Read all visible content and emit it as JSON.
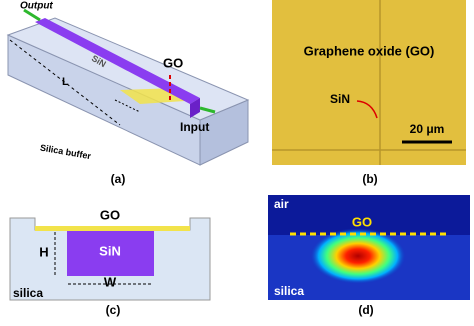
{
  "panel_a": {
    "output": "Output",
    "waveguide": "SiN",
    "length": "L",
    "coating": "GO",
    "input": "Input",
    "buffer": "Silica buffer",
    "caption": "(a)"
  },
  "panel_b": {
    "title": "Graphene oxide (GO)",
    "waveguide": "SiN",
    "scale_bar": "20 μm",
    "caption": "(b)"
  },
  "panel_c": {
    "coating": "GO",
    "height": "H",
    "waveguide": "SiN",
    "width": "W",
    "substrate": "silica",
    "caption": "(c)"
  },
  "panel_d": {
    "top": "air",
    "coating": "GO",
    "substrate": "silica",
    "caption": "(d)"
  }
}
